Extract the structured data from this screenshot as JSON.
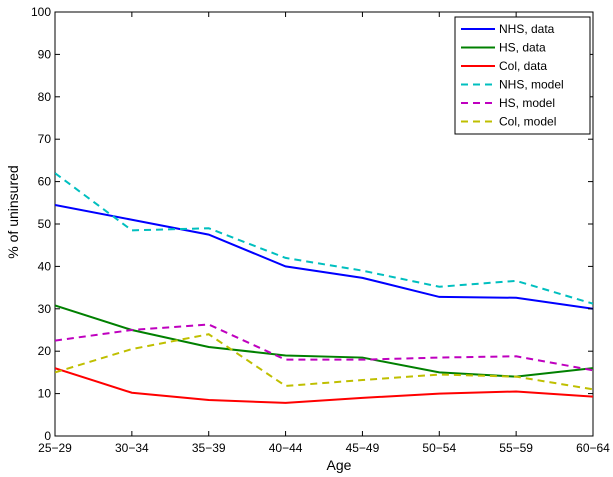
{
  "chart_data": {
    "type": "line",
    "title": "",
    "xlabel": "Age",
    "ylabel": "% of uninsured",
    "categories": [
      "25−29",
      "30−34",
      "35−39",
      "40−44",
      "45−49",
      "50−54",
      "55−59",
      "60−64"
    ],
    "ylim": [
      0,
      100
    ],
    "yticks": [
      0,
      10,
      20,
      30,
      40,
      50,
      60,
      70,
      80,
      90,
      100
    ],
    "grid": false,
    "legend_position": "top-right",
    "series": [
      {
        "name": "NHS, data",
        "color": "#0000ff",
        "dash": "solid",
        "values": [
          54.5,
          51.0,
          47.5,
          40.0,
          37.3,
          32.8,
          32.6,
          30.0
        ]
      },
      {
        "name": "HS, data",
        "color": "#008000",
        "dash": "solid",
        "values": [
          30.8,
          25.0,
          21.0,
          19.0,
          18.5,
          15.0,
          14.0,
          16.0
        ]
      },
      {
        "name": "Col, data",
        "color": "#ff0000",
        "dash": "solid",
        "values": [
          16.0,
          10.2,
          8.5,
          7.8,
          9.0,
          10.0,
          10.5,
          9.3
        ]
      },
      {
        "name": "NHS, model",
        "color": "#00bfbf",
        "dash": "dashed",
        "values": [
          62.0,
          48.5,
          49.0,
          42.0,
          39.0,
          35.2,
          36.6,
          31.2
        ]
      },
      {
        "name": "HS, model",
        "color": "#bf00bf",
        "dash": "dashed",
        "values": [
          22.5,
          25.0,
          26.3,
          18.0,
          18.0,
          18.5,
          18.8,
          15.5
        ]
      },
      {
        "name": "Col, model",
        "color": "#bfbf00",
        "dash": "dashed",
        "values": [
          15.0,
          20.5,
          24.0,
          11.8,
          13.2,
          14.5,
          14.0,
          11.0
        ]
      }
    ]
  }
}
